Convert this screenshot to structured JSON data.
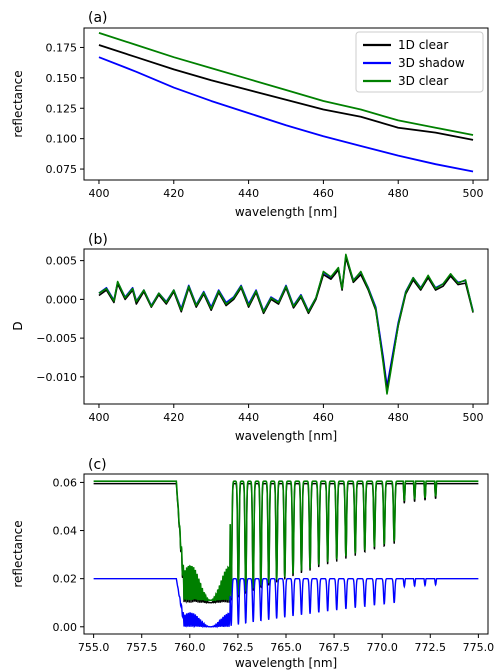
{
  "chart_data": [
    {
      "panel": "(a)",
      "type": "line",
      "xlabel": "wavelength [nm]",
      "ylabel": "reflectance",
      "xlim": [
        396,
        504
      ],
      "ylim": [
        0.066,
        0.191
      ],
      "xticks": [
        400,
        420,
        440,
        460,
        480,
        500
      ],
      "yticks": [
        0.075,
        0.1,
        0.125,
        0.15,
        0.175
      ],
      "yticks_labels": [
        "0.075",
        "0.100",
        "0.125",
        "0.150",
        "0.175"
      ],
      "legend_position": "top-right",
      "series": [
        {
          "name": "1D clear",
          "color": "#000000",
          "x": [
            400,
            410,
            420,
            430,
            440,
            450,
            460,
            470,
            480,
            490,
            500
          ],
          "y": [
            0.177,
            0.167,
            0.157,
            0.148,
            0.14,
            0.132,
            0.124,
            0.118,
            0.109,
            0.105,
            0.099
          ]
        },
        {
          "name": "3D shadow",
          "color": "#0000ff",
          "x": [
            400,
            410,
            420,
            430,
            440,
            450,
            460,
            470,
            480,
            490,
            500
          ],
          "y": [
            0.167,
            0.155,
            0.142,
            0.131,
            0.121,
            0.111,
            0.102,
            0.094,
            0.086,
            0.079,
            0.073
          ]
        },
        {
          "name": "3D clear",
          "color": "#008000",
          "x": [
            400,
            410,
            420,
            430,
            440,
            450,
            460,
            470,
            480,
            490,
            500
          ],
          "y": [
            0.187,
            0.177,
            0.167,
            0.158,
            0.149,
            0.14,
            0.131,
            0.124,
            0.115,
            0.109,
            0.103
          ]
        }
      ]
    },
    {
      "panel": "(b)",
      "type": "line",
      "xlabel": "wavelength [nm]",
      "ylabel": "D",
      "xlim": [
        396,
        504
      ],
      "ylim": [
        -0.0135,
        0.0065
      ],
      "xticks": [
        400,
        420,
        440,
        460,
        480,
        500
      ],
      "yticks": [
        -0.01,
        -0.005,
        0.0,
        0.005
      ],
      "yticks_labels": [
        "−0.010",
        "−0.005",
        "0.000",
        "0.005"
      ],
      "series": [
        {
          "name": "",
          "color": "#0000ff",
          "x": [
            400,
            402,
            404,
            405,
            407,
            409,
            410,
            412,
            414,
            416,
            418,
            420,
            422,
            424,
            426,
            428,
            430,
            432,
            434,
            436,
            438,
            440,
            442,
            444,
            446,
            448,
            450,
            452,
            454,
            456,
            458,
            460,
            462,
            464,
            465,
            466,
            468,
            470,
            472,
            474,
            476,
            477,
            478,
            480,
            482,
            484,
            486,
            488,
            490,
            492,
            494,
            496,
            498,
            500
          ],
          "y": [
            0.0008,
            0.0015,
            -0.0001,
            0.0022,
            0.0003,
            0.0015,
            -0.0002,
            0.0012,
            -0.0008,
            0.0008,
            -0.0003,
            0.0012,
            -0.0012,
            0.0018,
            -0.0007,
            0.001,
            -0.001,
            0.0012,
            -0.0004,
            0.0003,
            0.0018,
            -0.0006,
            0.0012,
            -0.0015,
            0.0003,
            -0.0003,
            0.0018,
            -0.0008,
            0.0006,
            -0.0015,
            0.0002,
            0.0035,
            0.0028,
            0.004,
            0.0014,
            0.0055,
            0.0025,
            0.0035,
            0.0015,
            -0.001,
            -0.0075,
            -0.0112,
            -0.0085,
            -0.003,
            0.001,
            0.0028,
            0.0015,
            0.003,
            0.0015,
            0.002,
            0.0032,
            0.0022,
            0.0024,
            -0.0015
          ]
        },
        {
          "name": "",
          "color": "#000000",
          "x": [
            400,
            402,
            404,
            405,
            407,
            409,
            410,
            412,
            414,
            416,
            418,
            420,
            422,
            424,
            426,
            428,
            430,
            432,
            434,
            436,
            438,
            440,
            442,
            444,
            446,
            448,
            450,
            452,
            454,
            456,
            458,
            460,
            462,
            464,
            465,
            466,
            468,
            470,
            472,
            474,
            476,
            477,
            478,
            480,
            482,
            484,
            486,
            488,
            490,
            492,
            494,
            496,
            498,
            500
          ],
          "y": [
            0.0005,
            0.0012,
            -0.0004,
            0.002,
            0.0,
            0.0012,
            -0.0006,
            0.001,
            -0.001,
            0.0006,
            -0.0006,
            0.001,
            -0.0016,
            0.0015,
            -0.001,
            0.0007,
            -0.0014,
            0.0009,
            -0.0008,
            0.0,
            0.0015,
            -0.001,
            0.0009,
            -0.0018,
            0.0,
            -0.0006,
            0.0015,
            -0.0011,
            0.0003,
            -0.0018,
            0.0,
            0.0032,
            0.0026,
            0.0038,
            0.0012,
            0.0054,
            0.0022,
            0.0032,
            0.0012,
            -0.0014,
            -0.008,
            -0.0118,
            -0.009,
            -0.0034,
            0.0007,
            0.0025,
            0.0012,
            0.0028,
            0.0012,
            0.0017,
            0.003,
            0.0019,
            0.0021,
            -0.0017
          ]
        },
        {
          "name": "",
          "color": "#008000",
          "x": [
            400,
            402,
            404,
            405,
            407,
            409,
            410,
            412,
            414,
            416,
            418,
            420,
            422,
            424,
            426,
            428,
            430,
            432,
            434,
            436,
            438,
            440,
            442,
            444,
            446,
            448,
            450,
            452,
            454,
            456,
            458,
            460,
            462,
            464,
            465,
            466,
            468,
            470,
            472,
            474,
            476,
            477,
            478,
            480,
            482,
            484,
            486,
            488,
            490,
            492,
            494,
            496,
            498,
            500
          ],
          "y": [
            0.0008,
            0.0014,
            -0.0002,
            0.0023,
            0.0002,
            0.0014,
            -0.0003,
            0.0012,
            -0.0009,
            0.0008,
            -0.0004,
            0.0012,
            -0.0014,
            0.0017,
            -0.0008,
            0.0009,
            -0.0012,
            0.0011,
            -0.0006,
            0.0002,
            0.0017,
            -0.0008,
            0.0011,
            -0.0016,
            0.0002,
            -0.0004,
            0.0017,
            -0.0009,
            0.0005,
            -0.0016,
            0.0002,
            0.0036,
            0.0029,
            0.0041,
            0.0014,
            0.0058,
            0.0024,
            0.0036,
            0.0014,
            -0.0012,
            -0.0083,
            -0.0122,
            -0.0093,
            -0.0033,
            0.0009,
            0.0028,
            0.0014,
            0.0031,
            0.0014,
            0.002,
            0.0033,
            0.0021,
            0.0025,
            -0.0016
          ]
        }
      ]
    },
    {
      "panel": "(c)",
      "type": "line",
      "xlabel": "wavelength [nm]",
      "ylabel": "reflectance",
      "xlim": [
        754.5,
        775.5
      ],
      "ylim": [
        -0.003,
        0.0635
      ],
      "xticks": [
        755.0,
        757.5,
        760.0,
        762.5,
        765.0,
        767.5,
        770.0,
        772.5,
        775.0
      ],
      "xticks_labels": [
        "755.0",
        "757.5",
        "760.0",
        "762.5",
        "765.0",
        "767.5",
        "770.0",
        "772.5",
        "775.0"
      ],
      "yticks": [
        0.0,
        0.02,
        0.04,
        0.06
      ],
      "yticks_labels": [
        "0.00",
        "0.02",
        "0.04",
        "0.06"
      ],
      "series": [
        {
          "name": "",
          "color": "#000000",
          "continuum": 0.0595,
          "band_start": 759.4,
          "band_end": 770.5,
          "trough": 0.01
        },
        {
          "name": "",
          "color": "#008000",
          "continuum": 0.0605,
          "band_start": 759.4,
          "band_end": 770.5,
          "trough": 0.011
        },
        {
          "name": "",
          "color": "#0000ff",
          "continuum": 0.02,
          "band_start": 759.4,
          "band_end": 770.5,
          "trough": 0.0
        }
      ]
    }
  ]
}
